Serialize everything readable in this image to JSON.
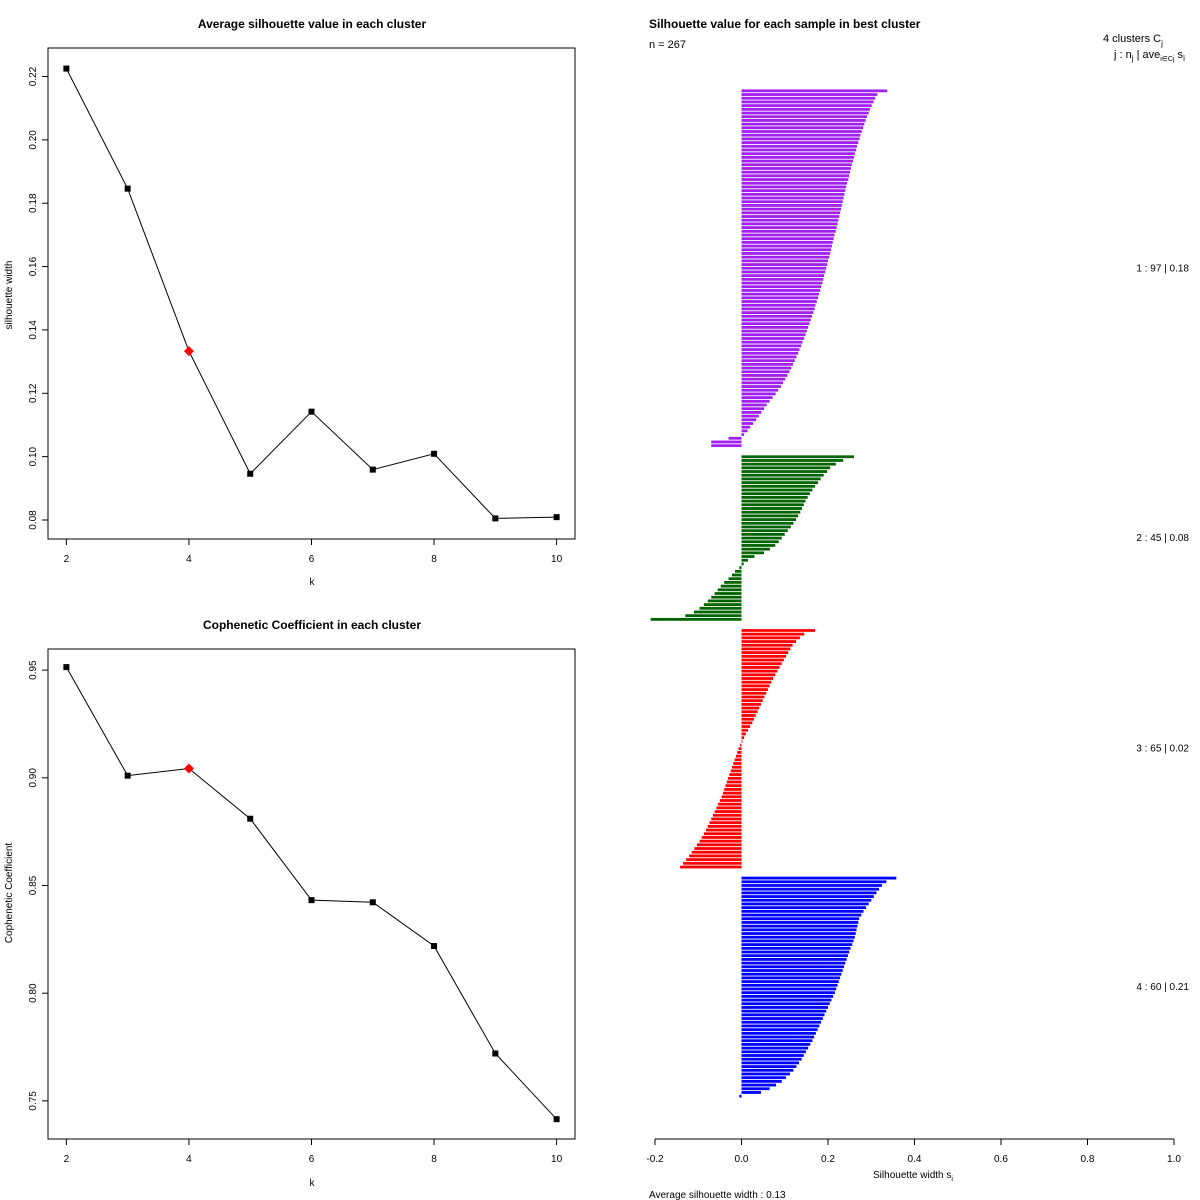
{
  "chart_data": [
    {
      "id": "avg-silhouette",
      "type": "line",
      "title": "Average silhouette value in each cluster",
      "xlabel": "k",
      "ylabel": "silhouette width",
      "xlim": [
        1.7,
        10.3
      ],
      "ylim": [
        0.074,
        0.229
      ],
      "xticks": [
        2,
        4,
        6,
        8,
        10
      ],
      "yticks": [
        0.08,
        0.1,
        0.12,
        0.14,
        0.16,
        0.18,
        0.2,
        0.22
      ],
      "x": [
        2,
        3,
        4,
        5,
        6,
        7,
        8,
        9,
        10
      ],
      "y": [
        0.2225,
        0.1846,
        0.1333,
        0.0946,
        0.1142,
        0.0959,
        0.1009,
        0.0805,
        0.0809
      ],
      "highlight_k": 4,
      "highlight_color": "#ff0000",
      "point_color": "#000000"
    },
    {
      "id": "cophenetic",
      "type": "line",
      "title": "Cophenetic Coefficient in each cluster",
      "xlabel": "k",
      "ylabel": "Cophenetic Coefficient",
      "xlim": [
        1.7,
        10.3
      ],
      "ylim": [
        0.7323,
        0.9598
      ],
      "xticks": [
        2,
        4,
        6,
        8,
        10
      ],
      "yticks": [
        0.75,
        0.8,
        0.85,
        0.9,
        0.95
      ],
      "x": [
        2,
        3,
        4,
        5,
        6,
        7,
        8,
        9,
        10
      ],
      "y": [
        0.9514,
        0.901,
        0.9043,
        0.881,
        0.8432,
        0.8422,
        0.8219,
        0.772,
        0.7415
      ],
      "highlight_k": 4,
      "highlight_color": "#ff0000",
      "point_color": "#000000"
    },
    {
      "id": "silhouette-samples",
      "type": "bar",
      "orientation": "horizontal",
      "title": "Silhouette value for each sample in best cluster",
      "n_label": "n = 267",
      "xlabel": "Silhouette width s",
      "xlabel_sub": "i",
      "xlim": [
        -0.2,
        1.0
      ],
      "xticks": [
        -0.2,
        0.0,
        0.2,
        0.4,
        0.6,
        0.8,
        1.0
      ],
      "legend_header": "4 clusters C",
      "legend_header_sub": "j",
      "legend_subheader": "j : n",
      "legend_subheader_sub1": "j",
      "legend_subheader_mid": " | ave",
      "legend_subheader_sub2": "i∈Cj",
      "legend_subheader_tail": " s",
      "legend_subheader_sub3": "i",
      "average_label": "Average silhouette width :  0.13",
      "clusters": [
        {
          "name": "1",
          "size": 97,
          "avg": 0.18,
          "label": "1 :  97  |  0.18",
          "color": "#a020f0",
          "values": [
            0.337,
            0.314,
            0.309,
            0.305,
            0.301,
            0.297,
            0.294,
            0.29,
            0.287,
            0.284,
            0.281,
            0.278,
            0.275,
            0.273,
            0.27,
            0.267,
            0.265,
            0.262,
            0.26,
            0.258,
            0.255,
            0.253,
            0.251,
            0.249,
            0.247,
            0.244,
            0.242,
            0.24,
            0.238,
            0.236,
            0.234,
            0.232,
            0.23,
            0.228,
            0.226,
            0.224,
            0.222,
            0.22,
            0.218,
            0.215,
            0.213,
            0.211,
            0.209,
            0.207,
            0.205,
            0.203,
            0.2,
            0.198,
            0.196,
            0.194,
            0.191,
            0.189,
            0.187,
            0.184,
            0.182,
            0.179,
            0.177,
            0.174,
            0.171,
            0.169,
            0.166,
            0.163,
            0.16,
            0.157,
            0.154,
            0.151,
            0.148,
            0.145,
            0.141,
            0.138,
            0.134,
            0.131,
            0.127,
            0.123,
            0.119,
            0.115,
            0.111,
            0.106,
            0.101,
            0.096,
            0.091,
            0.085,
            0.079,
            0.072,
            0.065,
            0.058,
            0.052,
            0.046,
            0.04,
            0.034,
            0.027,
            0.02,
            0.014,
            0.006,
            -0.03,
            -0.07,
            -0.07
          ]
        },
        {
          "name": "2",
          "size": 45,
          "avg": 0.08,
          "label": "2 :  45  |  0.08",
          "color": "#006400",
          "values": [
            0.26,
            0.235,
            0.218,
            0.205,
            0.198,
            0.19,
            0.183,
            0.177,
            0.17,
            0.164,
            0.158,
            0.153,
            0.148,
            0.144,
            0.14,
            0.136,
            0.131,
            0.126,
            0.12,
            0.114,
            0.107,
            0.1,
            0.093,
            0.086,
            0.078,
            0.066,
            0.052,
            0.03,
            0.015,
            0.005,
            -0.005,
            -0.015,
            -0.022,
            -0.03,
            -0.04,
            -0.048,
            -0.055,
            -0.062,
            -0.07,
            -0.078,
            -0.087,
            -0.097,
            -0.11,
            -0.13,
            -0.21
          ]
        },
        {
          "name": "3",
          "size": 65,
          "avg": 0.02,
          "label": "3 :  65  |  0.02",
          "color": "#ff0000",
          "values": [
            0.17,
            0.145,
            0.135,
            0.126,
            0.118,
            0.113,
            0.108,
            0.103,
            0.098,
            0.093,
            0.088,
            0.083,
            0.078,
            0.073,
            0.069,
            0.065,
            0.061,
            0.057,
            0.053,
            0.049,
            0.045,
            0.041,
            0.037,
            0.033,
            0.029,
            0.025,
            0.02,
            0.015,
            0.01,
            0.006,
            0.002,
            -0.003,
            -0.007,
            -0.01,
            -0.013,
            -0.016,
            -0.019,
            -0.022,
            -0.025,
            -0.028,
            -0.031,
            -0.034,
            -0.037,
            -0.04,
            -0.043,
            -0.046,
            -0.05,
            -0.054,
            -0.058,
            -0.062,
            -0.066,
            -0.07,
            -0.074,
            -0.078,
            -0.082,
            -0.087,
            -0.092,
            -0.097,
            -0.103,
            -0.109,
            -0.115,
            -0.121,
            -0.128,
            -0.135,
            -0.142
          ]
        },
        {
          "name": "4",
          "size": 60,
          "avg": 0.21,
          "label": "4 :  60  |  0.21",
          "color": "#0000ff",
          "values": [
            0.358,
            0.335,
            0.325,
            0.318,
            0.312,
            0.306,
            0.3,
            0.294,
            0.288,
            0.282,
            0.277,
            0.272,
            0.27,
            0.268,
            0.266,
            0.264,
            0.262,
            0.259,
            0.256,
            0.252,
            0.249,
            0.246,
            0.243,
            0.24,
            0.237,
            0.234,
            0.231,
            0.228,
            0.225,
            0.222,
            0.219,
            0.216,
            0.212,
            0.208,
            0.204,
            0.2,
            0.196,
            0.192,
            0.188,
            0.184,
            0.18,
            0.176,
            0.172,
            0.168,
            0.164,
            0.159,
            0.154,
            0.149,
            0.144,
            0.139,
            0.133,
            0.127,
            0.12,
            0.112,
            0.103,
            0.093,
            0.08,
            0.065,
            0.045,
            -0.005
          ]
        }
      ]
    }
  ]
}
